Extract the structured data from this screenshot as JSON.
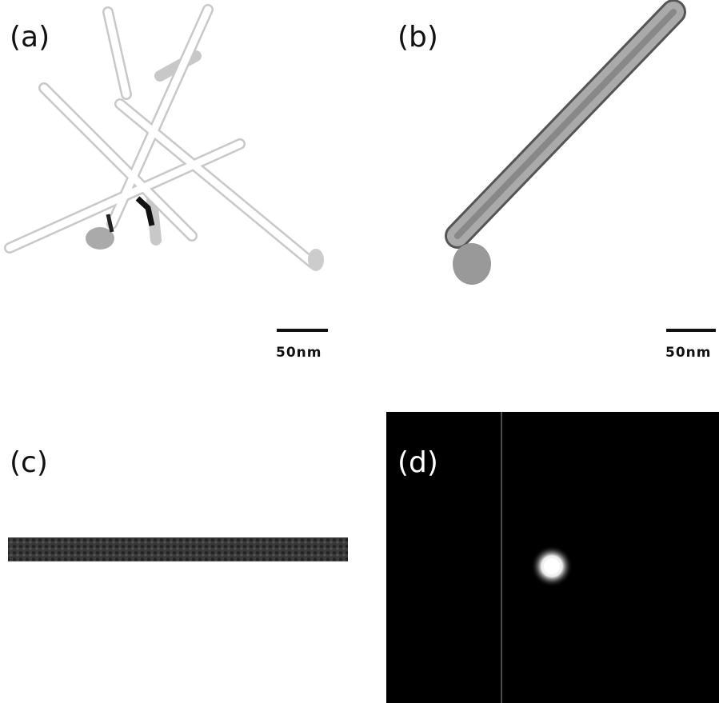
{
  "panels": [
    {
      "label": "(a)",
      "scale_bar": "50nm"
    },
    {
      "label": "(b)",
      "scale_bar": "50nm"
    },
    {
      "label": "(c)"
    },
    {
      "label": "(d)"
    }
  ]
}
